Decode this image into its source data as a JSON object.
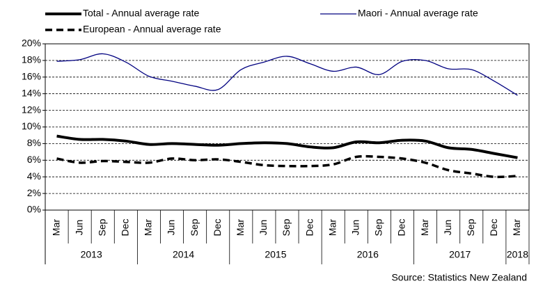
{
  "chart_data": {
    "type": "line",
    "categories": [
      "Mar",
      "Jun",
      "Sep",
      "Dec",
      "Mar",
      "Jun",
      "Sep",
      "Dec",
      "Mar",
      "Jun",
      "Sep",
      "Dec",
      "Mar",
      "Jun",
      "Sep",
      "Dec",
      "Mar",
      "Jun",
      "Sep",
      "Dec",
      "Mar"
    ],
    "year_groups": [
      {
        "label": "2013",
        "span": 4
      },
      {
        "label": "2014",
        "span": 4
      },
      {
        "label": "2015",
        "span": 4
      },
      {
        "label": "2016",
        "span": 4
      },
      {
        "label": "2017",
        "span": 4
      },
      {
        "label": "2018",
        "span": 1
      }
    ],
    "series": [
      {
        "name": "Total - Annual average rate",
        "color": "#000000",
        "style": "solid-thick",
        "values": [
          8.9,
          8.5,
          8.5,
          8.3,
          7.9,
          8.0,
          7.9,
          7.8,
          8.0,
          8.1,
          8.0,
          7.6,
          7.5,
          8.2,
          8.1,
          8.4,
          8.3,
          7.5,
          7.3,
          6.8,
          6.3
        ]
      },
      {
        "name": "Maori - Annual average rate",
        "color": "#000080",
        "style": "solid-thin",
        "values": [
          17.9,
          18.1,
          18.8,
          17.8,
          16.1,
          15.5,
          14.9,
          14.5,
          16.9,
          17.8,
          18.5,
          17.6,
          16.7,
          17.2,
          16.3,
          17.9,
          18.0,
          17.0,
          16.9,
          15.5,
          13.8
        ]
      },
      {
        "name": "European - Annual average rate",
        "color": "#000000",
        "style": "dashed",
        "values": [
          6.2,
          5.7,
          5.9,
          5.8,
          5.7,
          6.2,
          6.0,
          6.1,
          5.8,
          5.4,
          5.3,
          5.3,
          5.5,
          6.4,
          6.4,
          6.2,
          5.7,
          4.8,
          4.4,
          4.0,
          4.1
        ]
      }
    ],
    "ylim": [
      0,
      20
    ],
    "yticks": [
      {
        "value": 0,
        "label": "0%"
      },
      {
        "value": 2,
        "label": "2%"
      },
      {
        "value": 4,
        "label": "4%"
      },
      {
        "value": 6,
        "label": "6%"
      },
      {
        "value": 8,
        "label": "8%"
      },
      {
        "value": 10,
        "label": "10%"
      },
      {
        "value": 12,
        "label": "12%"
      },
      {
        "value": 14,
        "label": "14%"
      },
      {
        "value": 16,
        "label": "16%"
      },
      {
        "value": 18,
        "label": "18%"
      },
      {
        "value": 20,
        "label": "20%"
      }
    ],
    "grid": true,
    "legend": "top",
    "source": "Source: Statistics New Zealand"
  }
}
